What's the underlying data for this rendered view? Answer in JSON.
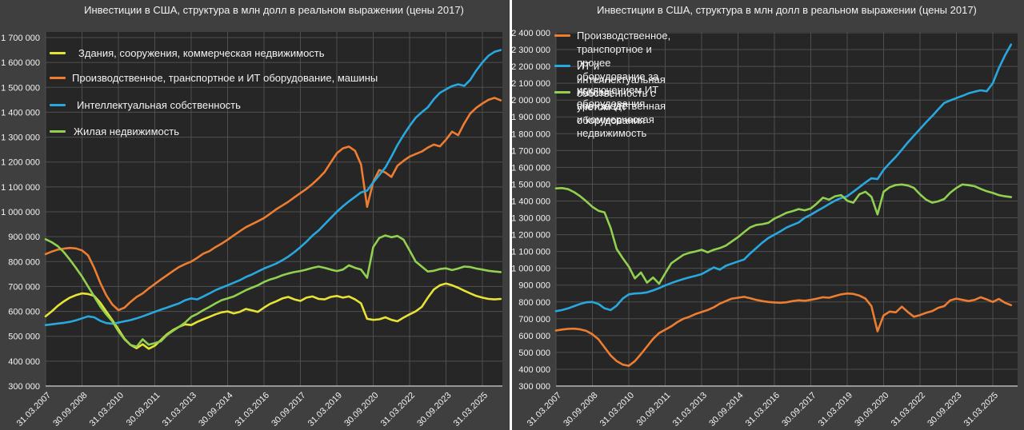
{
  "chart_data": [
    {
      "type": "line",
      "title": "Инвестиции в США, структура в млн долл в реальном выражении (цены 2017)",
      "x_tick_labels": [
        "31.03.2007",
        "30.09.2008",
        "31.03.2010",
        "30.09.2011",
        "31.03.2013",
        "30.09.2014",
        "31.03.2016",
        "30.09.2017",
        "31.03.2019",
        "30.09.2020",
        "31.03.2022",
        "30.09.2023",
        "31.03.2025"
      ],
      "x_frequency": "quarterly",
      "quarters_per_tick": 6,
      "ylabel": "",
      "y_axis": {
        "min": 300000,
        "max": 1700000,
        "step": 100000
      },
      "grid": true,
      "legend_position": "inside-top-left",
      "series": [
        {
          "name": "Здания, сооружения, коммерческая недвижимость",
          "color": "#e7e335",
          "values": [
            580000,
            600000,
            622000,
            640000,
            655000,
            665000,
            672000,
            670000,
            662000,
            635000,
            600000,
            565000,
            528000,
            490000,
            465000,
            452000,
            468000,
            450000,
            462000,
            485000,
            508000,
            525000,
            538000,
            548000,
            545000,
            558000,
            568000,
            578000,
            588000,
            596000,
            600000,
            592000,
            598000,
            610000,
            604000,
            598000,
            615000,
            630000,
            640000,
            652000,
            658000,
            648000,
            642000,
            655000,
            660000,
            650000,
            648000,
            658000,
            662000,
            655000,
            660000,
            648000,
            632000,
            570000,
            566000,
            568000,
            576000,
            566000,
            560000,
            575000,
            588000,
            600000,
            618000,
            655000,
            688000,
            705000,
            712000,
            705000,
            695000,
            683000,
            672000,
            662000,
            655000,
            650000,
            648000,
            650000
          ]
        },
        {
          "name": "Производственное, транспортное и ИТ оборудование, машины",
          "color": "#ed7d31",
          "values": [
            830000,
            840000,
            848000,
            852000,
            855000,
            853000,
            845000,
            825000,
            775000,
            715000,
            665000,
            628000,
            605000,
            615000,
            638000,
            658000,
            672000,
            692000,
            710000,
            728000,
            745000,
            762000,
            778000,
            790000,
            800000,
            815000,
            832000,
            842000,
            858000,
            872000,
            888000,
            905000,
            922000,
            938000,
            950000,
            962000,
            975000,
            992000,
            1010000,
            1025000,
            1040000,
            1058000,
            1075000,
            1092000,
            1112000,
            1135000,
            1160000,
            1198000,
            1235000,
            1255000,
            1262000,
            1245000,
            1190000,
            1020000,
            1120000,
            1168000,
            1158000,
            1140000,
            1185000,
            1205000,
            1222000,
            1232000,
            1242000,
            1258000,
            1270000,
            1263000,
            1290000,
            1322000,
            1308000,
            1355000,
            1395000,
            1418000,
            1435000,
            1450000,
            1458000,
            1448000
          ]
        },
        {
          "name": "Интеллектуальная собственность",
          "color": "#29a8df",
          "values": [
            545000,
            548000,
            551000,
            554000,
            558000,
            564000,
            572000,
            580000,
            576000,
            562000,
            553000,
            550000,
            555000,
            560000,
            565000,
            572000,
            580000,
            589000,
            598000,
            607000,
            615000,
            624000,
            632000,
            645000,
            652000,
            648000,
            660000,
            672000,
            685000,
            695000,
            705000,
            715000,
            725000,
            738000,
            748000,
            760000,
            772000,
            782000,
            792000,
            805000,
            820000,
            838000,
            858000,
            880000,
            905000,
            925000,
            950000,
            975000,
            1000000,
            1022000,
            1042000,
            1060000,
            1078000,
            1085000,
            1118000,
            1148000,
            1178000,
            1222000,
            1268000,
            1308000,
            1345000,
            1378000,
            1400000,
            1420000,
            1452000,
            1478000,
            1492000,
            1505000,
            1512000,
            1506000,
            1530000,
            1568000,
            1600000,
            1627000,
            1643000,
            1650000
          ]
        },
        {
          "name": "Жилая недвижимость",
          "color": "#92d050",
          "values": [
            890000,
            878000,
            862000,
            838000,
            808000,
            775000,
            740000,
            700000,
            660000,
            620000,
            588000,
            560000,
            520000,
            488000,
            465000,
            458000,
            488000,
            466000,
            472000,
            480000,
            505000,
            522000,
            538000,
            555000,
            578000,
            590000,
            605000,
            618000,
            632000,
            645000,
            652000,
            660000,
            672000,
            685000,
            695000,
            705000,
            718000,
            728000,
            735000,
            745000,
            752000,
            758000,
            762000,
            768000,
            775000,
            780000,
            775000,
            768000,
            762000,
            768000,
            785000,
            775000,
            768000,
            735000,
            858000,
            895000,
            905000,
            898000,
            903000,
            888000,
            845000,
            800000,
            780000,
            760000,
            763000,
            770000,
            773000,
            766000,
            772000,
            780000,
            778000,
            772000,
            768000,
            763000,
            760000,
            758000
          ]
        }
      ]
    },
    {
      "type": "line",
      "title": "Инвестиции в США, структура в млн долл в реальном выражении (цены 2017)",
      "x_tick_labels": [
        "31.03.2007",
        "30.09.2008",
        "31.03.2010",
        "30.09.2011",
        "31.03.2013",
        "30.09.2014",
        "31.03.2016",
        "30.09.2017",
        "31.03.2019",
        "30.09.2020",
        "31.03.2022",
        "30.09.2023",
        "31.03.2025"
      ],
      "x_frequency": "quarterly",
      "quarters_per_tick": 6,
      "ylabel": "",
      "y_axis": {
        "min": 300000,
        "max": 2400000,
        "step": 100000
      },
      "grid": true,
      "legend_position": "inside-top-left",
      "series": [
        {
          "name": "Производственное, транспортное и прочее оборудование за исключением ИТ оборудования",
          "color": "#ed7d31",
          "values": [
            630000,
            636000,
            640000,
            641000,
            637000,
            628000,
            608000,
            578000,
            530000,
            482000,
            448000,
            428000,
            420000,
            448000,
            490000,
            535000,
            580000,
            615000,
            635000,
            655000,
            680000,
            700000,
            712000,
            728000,
            740000,
            752000,
            768000,
            790000,
            805000,
            820000,
            825000,
            830000,
            822000,
            812000,
            805000,
            800000,
            797000,
            795000,
            798000,
            805000,
            810000,
            807000,
            812000,
            820000,
            828000,
            825000,
            835000,
            845000,
            850000,
            848000,
            838000,
            820000,
            775000,
            625000,
            720000,
            743000,
            738000,
            772000,
            740000,
            712000,
            722000,
            735000,
            745000,
            765000,
            775000,
            810000,
            820000,
            812000,
            805000,
            812000,
            828000,
            815000,
            800000,
            818000,
            795000,
            781000
          ]
        },
        {
          "name": "ИТ и интеллектуальная собственность с учетом ИТ оборудования",
          "color": "#29a8df",
          "values": [
            745000,
            752000,
            762000,
            775000,
            788000,
            798000,
            800000,
            788000,
            762000,
            752000,
            778000,
            820000,
            845000,
            850000,
            852000,
            857000,
            868000,
            882000,
            898000,
            912000,
            925000,
            936000,
            946000,
            955000,
            965000,
            985000,
            1005000,
            992000,
            1015000,
            1028000,
            1040000,
            1052000,
            1088000,
            1120000,
            1152000,
            1180000,
            1200000,
            1220000,
            1242000,
            1258000,
            1272000,
            1300000,
            1318000,
            1340000,
            1360000,
            1382000,
            1402000,
            1418000,
            1428000,
            1455000,
            1482000,
            1510000,
            1535000,
            1530000,
            1585000,
            1625000,
            1662000,
            1705000,
            1748000,
            1788000,
            1828000,
            1868000,
            1905000,
            1945000,
            1983000,
            1998000,
            2012000,
            2025000,
            2040000,
            2050000,
            2058000,
            2052000,
            2100000,
            2190000,
            2265000,
            2330000
          ]
        },
        {
          "name": "Жилая, производственная и коммерческая недвижимость",
          "color": "#92d050",
          "values": [
            1475000,
            1477000,
            1470000,
            1452000,
            1428000,
            1398000,
            1365000,
            1342000,
            1332000,
            1240000,
            1115000,
            1060000,
            1010000,
            940000,
            975000,
            915000,
            945000,
            908000,
            970000,
            1030000,
            1055000,
            1080000,
            1092000,
            1100000,
            1110000,
            1095000,
            1110000,
            1120000,
            1135000,
            1160000,
            1185000,
            1215000,
            1243000,
            1258000,
            1262000,
            1270000,
            1295000,
            1312000,
            1330000,
            1340000,
            1352000,
            1345000,
            1355000,
            1385000,
            1420000,
            1408000,
            1428000,
            1435000,
            1402000,
            1390000,
            1440000,
            1455000,
            1425000,
            1320000,
            1455000,
            1482000,
            1495000,
            1498000,
            1492000,
            1478000,
            1440000,
            1408000,
            1390000,
            1398000,
            1412000,
            1450000,
            1478000,
            1498000,
            1494000,
            1488000,
            1472000,
            1458000,
            1448000,
            1435000,
            1428000,
            1423000
          ]
        }
      ]
    }
  ],
  "theme": {
    "panel_bg": "#3f3f3f",
    "plot_bg": "#262626",
    "gridline": "#4f4f4f",
    "axis_line": "#b7b7b7",
    "text_color": "#f2f2f2",
    "divider": "#ffffff"
  }
}
